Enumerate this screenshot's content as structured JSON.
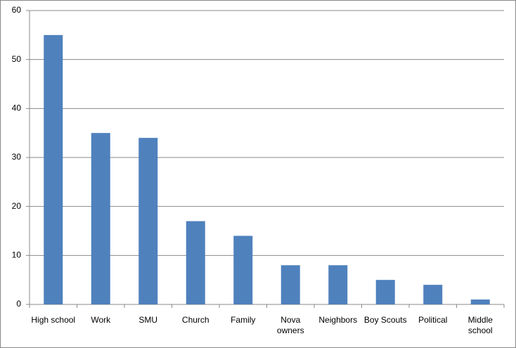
{
  "chart_data": {
    "type": "bar",
    "categories": [
      "High school",
      "Work",
      "SMU",
      "Church",
      "Family",
      "Nova owners",
      "Neighbors",
      "Boy Scouts",
      "Political",
      "Middle school"
    ],
    "values": [
      55,
      35,
      34,
      17,
      14,
      8,
      8,
      5,
      4,
      1
    ],
    "color": "#4f81bd",
    "ylim": [
      0,
      60
    ],
    "yticks": [
      0,
      10,
      20,
      30,
      40,
      50,
      60
    ],
    "grid": true
  }
}
